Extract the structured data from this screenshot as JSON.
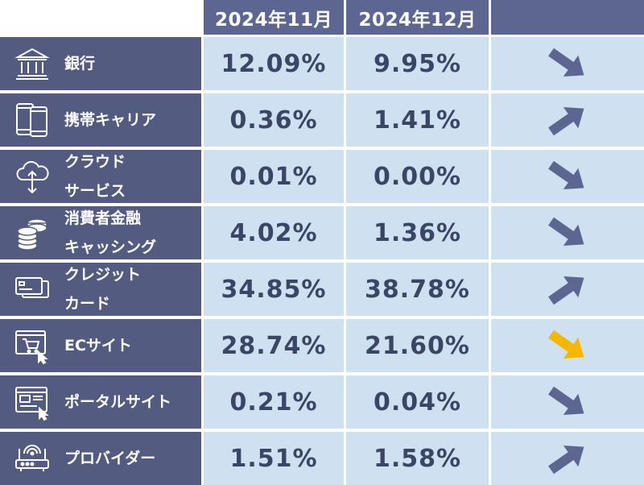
{
  "chart_data": {
    "type": "table",
    "columns": [
      "2024年11月",
      "2024年12月"
    ],
    "colors": {
      "arrow_default": "#5d6690",
      "arrow_highlight": "#f5b800"
    },
    "rows": [
      {
        "label": "銀行",
        "icon": "bank-icon",
        "nov": "12.09%",
        "dec": "9.95%",
        "trend": "down",
        "highlight": false
      },
      {
        "label": "携帯キャリア",
        "icon": "smartphone-icon",
        "nov": "0.36%",
        "dec": "1.41%",
        "trend": "up",
        "highlight": false
      },
      {
        "label": "クラウド\nサービス",
        "icon": "cloud-icon",
        "nov": "0.01%",
        "dec": "0.00%",
        "trend": "down",
        "highlight": false
      },
      {
        "label": "消費者金融\nキャッシング",
        "icon": "coins-icon",
        "nov": "4.02%",
        "dec": "1.36%",
        "trend": "down",
        "highlight": false
      },
      {
        "label": "クレジット\nカード",
        "icon": "credit-card-icon",
        "nov": "34.85%",
        "dec": "38.78%",
        "trend": "up",
        "highlight": false
      },
      {
        "label": "ECサイト",
        "icon": "cart-icon",
        "nov": "28.74%",
        "dec": "21.60%",
        "trend": "down",
        "highlight": true
      },
      {
        "label": "ポータルサイト",
        "icon": "browser-icon",
        "nov": "0.21%",
        "dec": "0.04%",
        "trend": "down",
        "highlight": false
      },
      {
        "label": "プロバイダー",
        "icon": "router-icon",
        "nov": "1.51%",
        "dec": "1.58%",
        "trend": "up",
        "highlight": false
      }
    ]
  }
}
